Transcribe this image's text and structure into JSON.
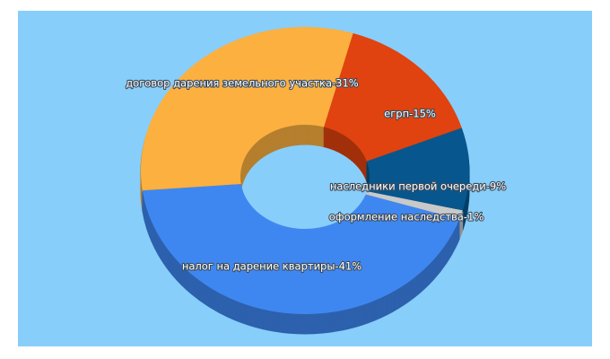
{
  "chart_data": {
    "type": "donut3d",
    "values": [
      31,
      15,
      9,
      1,
      41
    ],
    "value_labels": [
      "договор дарения земельного участка-31%",
      "егрп-15%",
      "наследники первой очереди-9%",
      "оформление наследства-1%",
      "налог на дарение квартиры-41%"
    ],
    "colors": [
      "#fbb040",
      "#e0430f",
      "#07578e",
      "#c9c9c9",
      "#3f87f0"
    ]
  }
}
